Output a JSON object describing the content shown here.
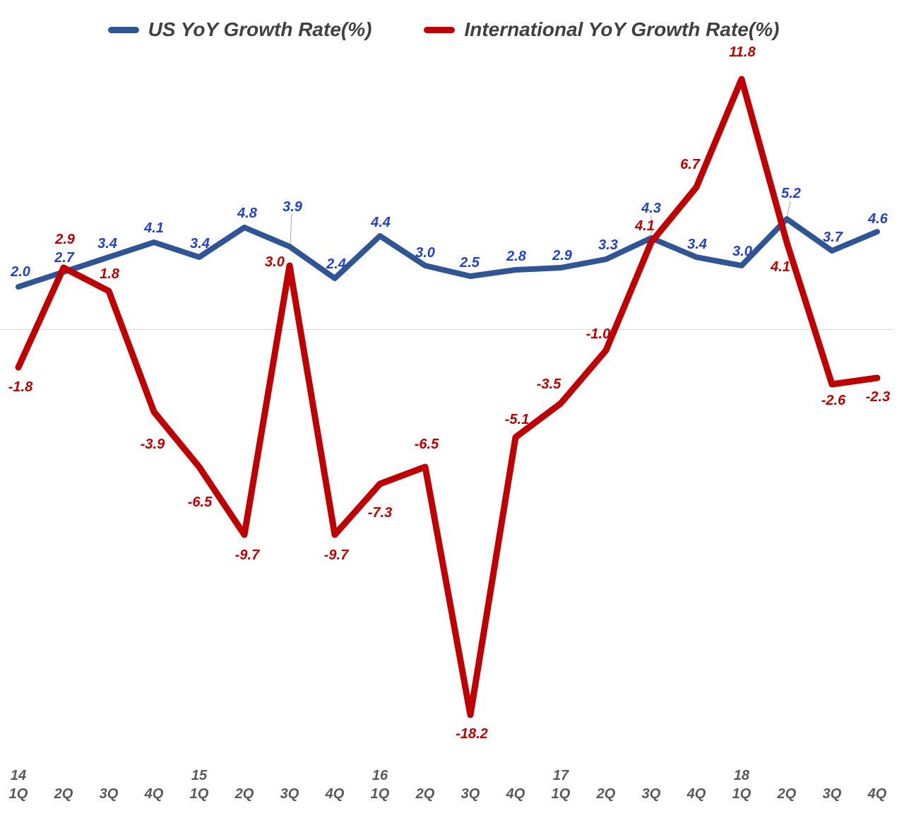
{
  "chart_data": {
    "type": "line",
    "title": "",
    "x_quarters": [
      "1Q",
      "2Q",
      "3Q",
      "4Q",
      "1Q",
      "2Q",
      "3Q",
      "4Q",
      "1Q",
      "2Q",
      "3Q",
      "4Q",
      "1Q",
      "2Q",
      "3Q",
      "4Q",
      "1Q",
      "2Q",
      "3Q",
      "4Q"
    ],
    "x_years": [
      {
        "label": "14",
        "index": 0
      },
      {
        "label": "15",
        "index": 4
      },
      {
        "label": "16",
        "index": 8
      },
      {
        "label": "17",
        "index": 12
      },
      {
        "label": "18",
        "index": 16
      }
    ],
    "series": [
      {
        "name": "US YoY Growth Rate(%)",
        "color": "#2F5597",
        "label_color": "#2342C8",
        "values": [
          2.0,
          2.7,
          3.4,
          4.1,
          3.4,
          4.8,
          3.9,
          2.4,
          4.4,
          3.0,
          2.5,
          2.8,
          2.9,
          3.3,
          4.3,
          3.4,
          3.0,
          5.2,
          3.7,
          4.6
        ]
      },
      {
        "name": "International YoY Growth Rate(%)",
        "color": "#C00000",
        "label_color": "#C00000",
        "values": [
          -1.8,
          2.9,
          1.8,
          -3.9,
          -6.5,
          -9.7,
          3.0,
          -9.7,
          -7.3,
          -6.5,
          -18.2,
          -5.1,
          -3.5,
          -1.0,
          4.1,
          6.7,
          11.8,
          4.1,
          -2.6,
          -2.3
        ]
      }
    ],
    "ylim": [
      -18.2,
      11.8
    ],
    "grid": false,
    "zero_line": true,
    "legend_position": "top",
    "layout": {
      "plot": {
        "x_start": 26,
        "x_step": 64,
        "y_zero": 466,
        "y_per_unit": 30
      },
      "line_widths": [
        8,
        9
      ],
      "zero_line_color": "#D9D9D9",
      "zero_line_span": [
        0,
        1266
      ],
      "axis_label_color": "#595959",
      "leader_color": "#A6A6A6",
      "axis_rows": {
        "quarter_baseline": 1130,
        "year_baseline": 1104
      },
      "label_offsets": [
        [
          [
            3,
            -22
          ],
          [
            1,
            -21
          ],
          [
            -2,
            -20
          ],
          [
            0,
            -21
          ],
          [
            1,
            -20
          ],
          [
            4,
            -21
          ],
          [
            4,
            -57
          ],
          [
            2,
            -21
          ],
          [
            1,
            -20
          ],
          [
            0,
            -19
          ],
          [
            -1,
            -20
          ],
          [
            1,
            -20
          ],
          [
            2,
            -18
          ],
          [
            3,
            -21
          ],
          [
            0,
            -43
          ],
          [
            1,
            -19
          ],
          [
            1,
            -21
          ],
          [
            6,
            -37
          ],
          [
            1,
            -20
          ],
          [
            1,
            -19
          ]
        ],
        [
          [
            3,
            27
          ],
          [
            2,
            -41
          ],
          [
            1,
            -25
          ],
          [
            -2,
            45
          ],
          [
            1,
            49
          ],
          [
            4,
            28
          ],
          [
            -21,
            -6
          ],
          [
            2,
            28
          ],
          [
            0,
            40
          ],
          [
            2,
            -33
          ],
          [
            2,
            26
          ],
          [
            2,
            -26
          ],
          [
            -17,
            -28
          ],
          [
            -11,
            -24
          ],
          [
            -9,
            -24
          ],
          [
            -9,
            -33
          ],
          [
            1,
            -39
          ],
          [
            -9,
            34
          ],
          [
            2,
            22
          ],
          [
            1,
            26
          ]
        ]
      ],
      "leaders": [
        [
          411,
          347,
          413,
          303
        ],
        [
          922,
          335,
          922,
          305
        ],
        [
          1114,
          308,
          1119,
          285
        ]
      ]
    }
  }
}
